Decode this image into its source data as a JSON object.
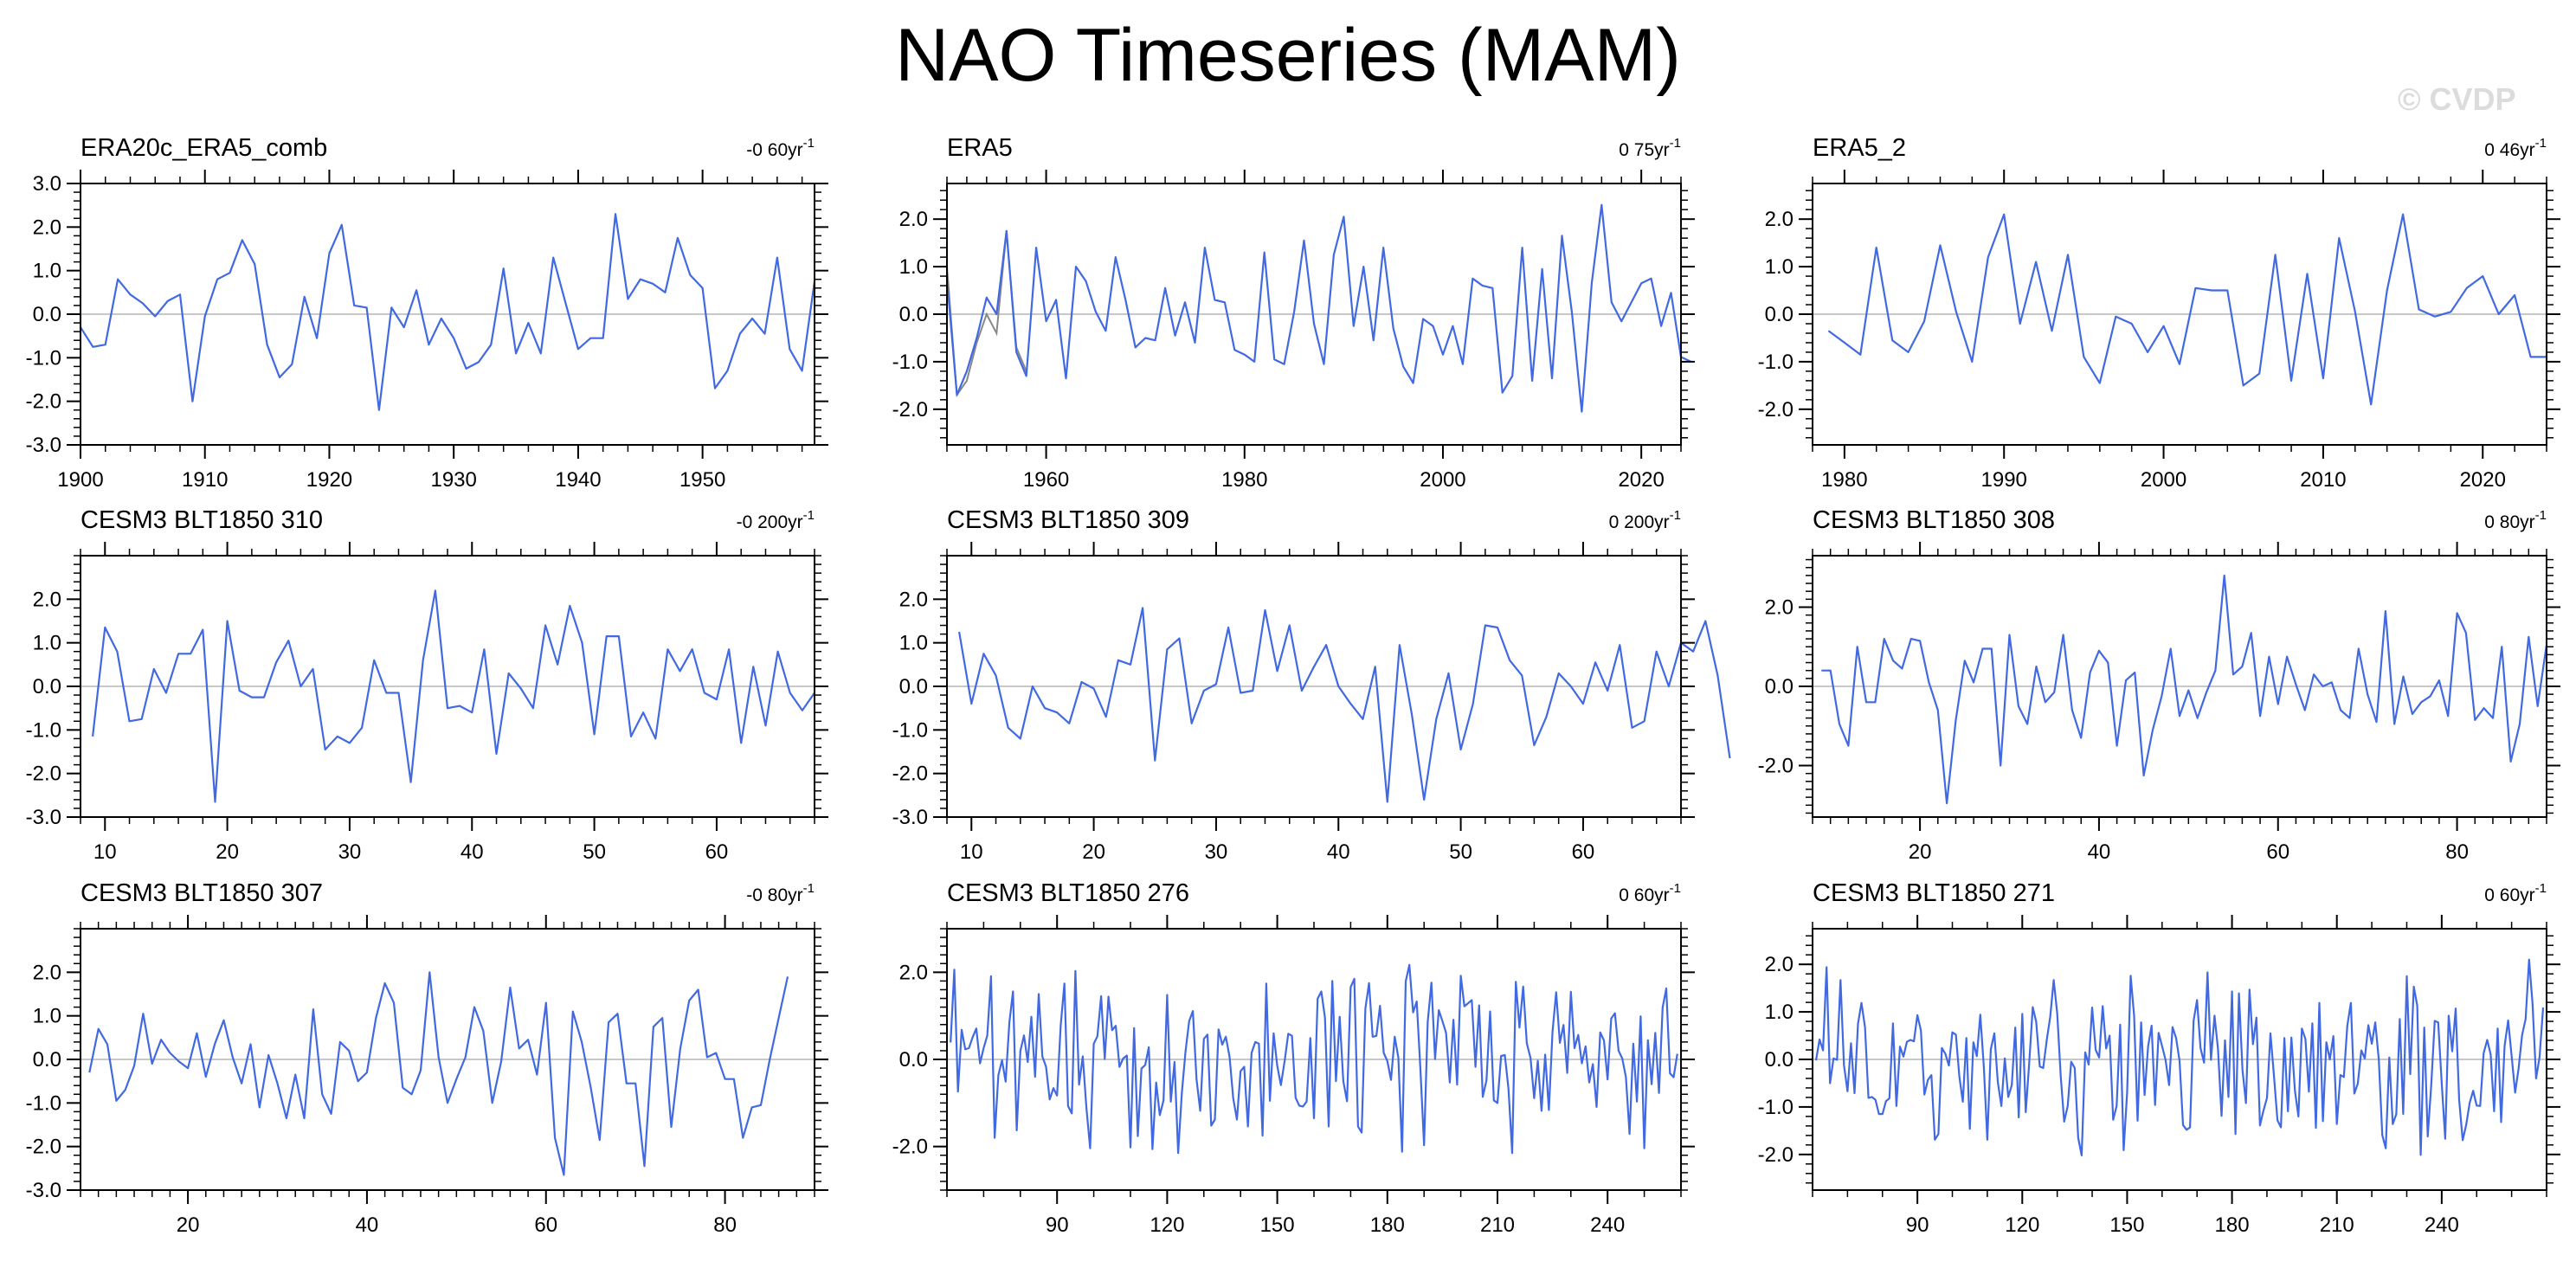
{
  "title": "NAO Timeseries (MAM)",
  "watermark": "© CVDP",
  "colors": {
    "series": "#4169e1",
    "obs_overlay": "#888888",
    "zero_line": "#c8c8c8",
    "axis": "#000000"
  },
  "chart_data": [
    {
      "type": "line",
      "title": "ERA20c_ERA5_comb",
      "trend": "-0 60",
      "trend_unit": "yr",
      "trend_exp": "-1",
      "xlim": [
        1900,
        1959
      ],
      "ylim": [
        -3.0,
        3.0
      ],
      "xticks": [
        1900,
        1910,
        1920,
        1930,
        1940,
        1950
      ],
      "yticks": [
        -3.0,
        -2.0,
        -1.0,
        0.0,
        1.0,
        2.0,
        3.0
      ],
      "x_start": 1900,
      "x_step": 1,
      "values": [
        -0.3,
        -0.75,
        -0.7,
        0.8,
        0.45,
        0.25,
        -0.05,
        0.3,
        0.45,
        -2.0,
        -0.05,
        0.8,
        0.95,
        1.7,
        1.15,
        -0.7,
        -1.45,
        -1.15,
        0.4,
        -0.55,
        1.4,
        2.05,
        0.2,
        0.15,
        -2.2,
        0.15,
        -0.3,
        0.55,
        -0.7,
        -0.1,
        -0.55,
        -1.25,
        -1.1,
        -0.7,
        1.05,
        -0.9,
        -0.2,
        -0.9,
        1.3,
        0.25,
        -0.8,
        -0.55,
        -0.55,
        2.3,
        0.35,
        0.8,
        0.7,
        0.5,
        1.75,
        0.9,
        0.6,
        -1.7,
        -1.3,
        -0.45,
        -0.1,
        -0.45,
        1.3,
        -0.8,
        -1.3,
        0.75
      ]
    },
    {
      "type": "line",
      "title": "ERA5",
      "trend": "0 75",
      "trend_unit": "yr",
      "trend_exp": "-1",
      "xlim": [
        1950,
        2024
      ],
      "ylim": [
        -2.75,
        2.75
      ],
      "xticks": [
        1960,
        1980,
        2000,
        2020
      ],
      "yticks": [
        -2.0,
        -1.0,
        0.0,
        1.0,
        2.0
      ],
      "x_start": 1950,
      "x_step": 1,
      "values": [
        0.75,
        -1.7,
        -1.2,
        -0.5,
        0.35,
        0.0,
        1.75,
        -0.8,
        -1.3,
        1.4,
        -0.15,
        0.3,
        -1.35,
        1.0,
        0.7,
        0.05,
        -0.35,
        1.2,
        0.3,
        -0.7,
        -0.5,
        -0.55,
        0.55,
        -0.45,
        0.25,
        -0.6,
        1.4,
        0.3,
        0.25,
        -0.75,
        -0.85,
        -1.0,
        1.3,
        -0.95,
        -1.05,
        0.05,
        1.55,
        -0.2,
        -1.05,
        1.25,
        2.05,
        -0.25,
        1.0,
        -0.55,
        1.4,
        -0.3,
        -1.1,
        -1.45,
        -0.1,
        -0.25,
        -0.85,
        -0.25,
        -1.05,
        0.75,
        0.6,
        0.55,
        -1.65,
        -1.3,
        1.4,
        -1.4,
        0.95,
        -1.35,
        1.65,
        0.05,
        -2.05,
        0.65,
        2.3,
        0.25,
        -0.15,
        0.25,
        0.65,
        0.75,
        -0.25,
        0.45,
        -0.9,
        -1.0
      ],
      "overlay_start": 1950,
      "overlay_values": [
        1.0,
        -1.7,
        -1.4,
        -0.6,
        0.0,
        -0.4,
        1.75,
        -0.7,
        -1.2
      ]
    },
    {
      "type": "line",
      "title": "ERA5_2",
      "trend": "0 46",
      "trend_unit": "yr",
      "trend_exp": "-1",
      "xlim": [
        1978,
        2024
      ],
      "ylim": [
        -2.75,
        2.75
      ],
      "xticks": [
        1980,
        1990,
        2000,
        2010,
        2020
      ],
      "yticks": [
        -2.0,
        -1.0,
        0.0,
        1.0,
        2.0
      ],
      "x_start": 1979,
      "x_step": 1,
      "values": [
        -0.35,
        -0.6,
        -0.85,
        1.4,
        -0.55,
        -0.8,
        -0.15,
        1.45,
        0.05,
        -1.0,
        1.2,
        2.1,
        -0.2,
        1.1,
        -0.35,
        1.25,
        -0.9,
        -1.45,
        -0.05,
        -0.2,
        -0.8,
        -0.25,
        -1.05,
        0.55,
        0.5,
        0.5,
        -1.5,
        -1.25,
        1.25,
        -1.4,
        0.85,
        -1.35,
        1.6,
        0.05,
        -1.9,
        0.5,
        2.1,
        0.1,
        -0.05,
        0.05,
        0.55,
        0.8,
        0.0,
        0.4,
        -0.9,
        -0.9
      ]
    },
    {
      "type": "line",
      "title": "CESM3 BLT1850 310",
      "trend": "-0 200",
      "trend_unit": "yr",
      "trend_exp": "-1",
      "xlim": [
        8,
        68
      ],
      "ylim": [
        -3.0,
        3.0
      ],
      "xticks": [
        10,
        20,
        30,
        40,
        50,
        60
      ],
      "yticks": [
        -3.0,
        -2.0,
        -1.0,
        0.0,
        1.0,
        2.0
      ],
      "x_start": 9,
      "x_step": 1,
      "values": [
        -1.15,
        1.35,
        0.8,
        -0.8,
        -0.75,
        0.4,
        -0.15,
        0.75,
        0.75,
        1.3,
        -2.65,
        1.5,
        -0.1,
        -0.25,
        -0.25,
        0.55,
        1.05,
        0.0,
        0.4,
        -1.45,
        -1.15,
        -1.3,
        -0.95,
        0.6,
        -0.15,
        -0.15,
        -2.2,
        0.6,
        2.2,
        -0.5,
        -0.45,
        -0.6,
        0.85,
        -1.55,
        0.3,
        -0.05,
        -0.5,
        1.4,
        0.5,
        1.85,
        1.0,
        -1.1,
        1.15,
        1.15,
        -1.15,
        -0.6,
        -1.2,
        0.85,
        0.35,
        0.85,
        -0.15,
        -0.3,
        0.85,
        -1.3,
        0.45,
        -0.9,
        0.8,
        -0.15,
        -0.55,
        -0.15
      ]
    },
    {
      "type": "line",
      "title": "CESM3 BLT1850 309",
      "trend": "0 200",
      "trend_unit": "yr",
      "trend_exp": "-1",
      "xlim": [
        8,
        68
      ],
      "ylim": [
        -3.0,
        3.0
      ],
      "xticks": [
        10,
        20,
        30,
        40,
        50,
        60
      ],
      "yticks": [
        -3.0,
        -2.0,
        -1.0,
        0.0,
        1.0,
        2.0
      ],
      "x_start": 9,
      "x_step": 1,
      "values": [
        1.25,
        -0.4,
        0.75,
        0.25,
        -0.95,
        -1.2,
        0.0,
        -0.5,
        -0.6,
        -0.85,
        0.1,
        -0.05,
        -0.7,
        0.6,
        0.5,
        1.8,
        -1.7,
        0.85,
        1.1,
        -0.85,
        -0.1,
        0.05,
        1.35,
        -0.15,
        -0.1,
        1.75,
        0.35,
        1.4,
        -0.1,
        0.45,
        0.95,
        0.0,
        -0.4,
        -0.75,
        0.45,
        -2.65,
        0.95,
        -0.65,
        -2.6,
        -0.75,
        0.3,
        -1.45,
        -0.4,
        1.4,
        1.35,
        0.6,
        0.25,
        -1.35,
        -0.7,
        0.3,
        0.0,
        -0.4,
        0.55,
        -0.1,
        0.95,
        -0.95,
        -0.8,
        0.8,
        0.0,
        1.0,
        0.8,
        1.5,
        0.25,
        -1.65
      ]
    },
    {
      "type": "line",
      "title": "CESM3 BLT1850 308",
      "trend": "0 80",
      "trend_unit": "yr",
      "trend_exp": "-1",
      "xlim": [
        8,
        90
      ],
      "ylim": [
        -3.3,
        3.3
      ],
      "xticks": [
        20,
        40,
        60,
        80
      ],
      "yticks": [
        -2.0,
        0.0,
        2.0
      ],
      "x_start": 9,
      "x_step": 1,
      "values": [
        0.4,
        0.4,
        -0.95,
        -1.5,
        1.0,
        -0.4,
        -0.4,
        1.2,
        0.65,
        0.45,
        1.2,
        1.15,
        0.1,
        -0.6,
        -2.95,
        -0.85,
        0.65,
        0.1,
        0.95,
        0.95,
        -2.0,
        1.3,
        -0.5,
        -0.95,
        0.5,
        -0.4,
        -0.15,
        1.3,
        -0.6,
        -1.3,
        0.35,
        0.9,
        0.6,
        -1.5,
        0.15,
        0.35,
        -2.25,
        -1.1,
        -0.25,
        0.95,
        -0.75,
        -0.1,
        -0.8,
        -0.15,
        0.4,
        2.8,
        0.3,
        0.5,
        1.35,
        -0.75,
        0.75,
        -0.45,
        0.75,
        0.05,
        -0.6,
        0.3,
        0.0,
        0.1,
        -0.6,
        -0.8,
        0.95,
        -0.2,
        -0.9,
        1.9,
        -0.95,
        0.25,
        -0.7,
        -0.4,
        -0.25,
        0.15,
        -0.75,
        1.85,
        1.35,
        -0.85,
        -0.55,
        -0.8,
        1.0,
        -1.9,
        -0.95,
        1.25,
        -0.5,
        1.05
      ]
    },
    {
      "type": "line",
      "title": "CESM3 BLT1850 307",
      "trend": "-0 80",
      "trend_unit": "yr",
      "trend_exp": "-1",
      "xlim": [
        8,
        90
      ],
      "ylim": [
        -3.0,
        3.0
      ],
      "xticks": [
        20,
        40,
        60,
        80
      ],
      "yticks": [
        -3.0,
        -2.0,
        -1.0,
        0.0,
        1.0,
        2.0
      ],
      "x_start": 9,
      "x_step": 1,
      "values": [
        -0.3,
        0.7,
        0.35,
        -0.95,
        -0.7,
        -0.15,
        1.05,
        -0.1,
        0.45,
        0.15,
        -0.05,
        -0.2,
        0.6,
        -0.4,
        0.35,
        0.9,
        0.05,
        -0.55,
        0.35,
        -1.1,
        0.1,
        -0.55,
        -1.35,
        -0.35,
        -1.35,
        1.15,
        -0.8,
        -1.25,
        0.4,
        0.2,
        -0.5,
        -0.3,
        0.95,
        1.75,
        1.3,
        -0.65,
        -0.8,
        -0.25,
        2.0,
        0.05,
        -1.0,
        -0.45,
        0.05,
        1.2,
        0.65,
        -1.0,
        -0.05,
        1.65,
        0.25,
        0.45,
        -0.35,
        1.3,
        -1.8,
        -2.65,
        1.1,
        0.4,
        -0.65,
        -1.85,
        0.85,
        1.05,
        -0.55,
        -0.55,
        -2.45,
        0.75,
        0.95,
        -1.55,
        0.25,
        1.35,
        1.6,
        0.05,
        0.15,
        -0.45,
        -0.45,
        -1.8,
        -1.1,
        -1.05,
        0.0,
        0.95,
        1.9
      ]
    },
    {
      "type": "line",
      "title": "CESM3 BLT1850 276",
      "trend": "0 60",
      "trend_unit": "yr",
      "trend_exp": "-1",
      "xlim": [
        60,
        260
      ],
      "ylim": [
        -3.0,
        3.0
      ],
      "xticks": [
        90,
        120,
        150,
        180,
        210,
        240
      ],
      "yticks": [
        -2.0,
        0.0,
        2.0
      ],
      "x_start": 61,
      "x_step": 1,
      "values": []
    },
    {
      "type": "line",
      "title": "CESM3 BLT1850 271",
      "trend": "0 60",
      "trend_unit": "yr",
      "trend_exp": "-1",
      "xlim": [
        60,
        270
      ],
      "ylim": [
        -2.75,
        2.75
      ],
      "xticks": [
        90,
        120,
        150,
        180,
        210,
        240
      ],
      "yticks": [
        -2.0,
        -1.0,
        0.0,
        1.0,
        2.0
      ],
      "x_start": 61,
      "x_step": 1,
      "values": []
    }
  ]
}
